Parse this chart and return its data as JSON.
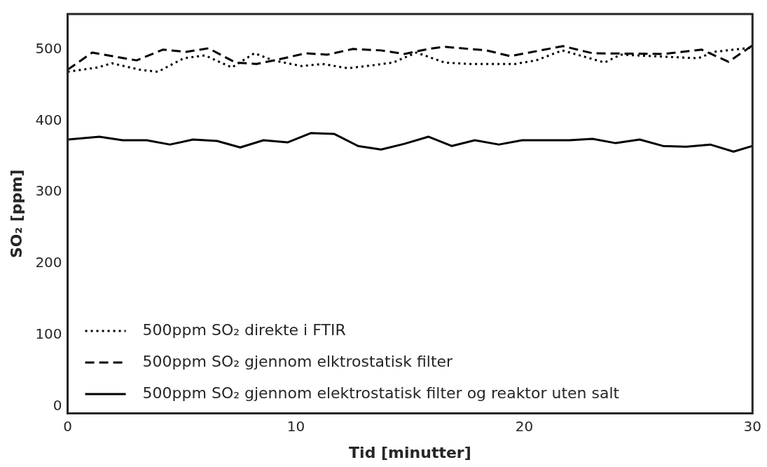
{
  "chart_data": {
    "type": "line",
    "xlabel": "Tid [minutter]",
    "ylabel": "SO₂ [ppm]",
    "xlim": [
      0,
      30
    ],
    "xticks": [
      0,
      10,
      20,
      30
    ],
    "ylim": [
      -10,
      550
    ],
    "yticks": [
      0,
      100,
      200,
      300,
      400,
      500
    ],
    "grid": false,
    "legend": "bottom left",
    "marker": "none",
    "series": [
      {
        "name": "500ppm SO₂ direkte i FTIR",
        "color": "#000000",
        "line_style": "dotted",
        "x": [
          0,
          1.3,
          1.94,
          3.15,
          3.95,
          5.09,
          6.02,
          7.19,
          8.18,
          9.01,
          10.25,
          11.17,
          12.28,
          13.33,
          14.26,
          15.28,
          16.51,
          17.53,
          19.6,
          20.52,
          21.67,
          23.52,
          24.23,
          27.62,
          28.33,
          30
        ],
        "values": [
          469,
          475,
          481,
          472,
          469,
          488,
          492,
          475,
          495,
          485,
          477,
          480,
          474,
          478,
          482,
          496,
          482,
          480,
          480,
          485,
          499,
          482,
          493,
          488,
          497,
          503
        ]
      },
      {
        "name": "500ppm SO₂ gjennom elktrostatisk filter",
        "color": "#000000",
        "line_style": "dashed",
        "x": [
          0,
          1.08,
          3.02,
          4.17,
          5.19,
          6.17,
          7.35,
          8.27,
          9.2,
          10.43,
          11.36,
          12.5,
          13.73,
          14.75,
          15.8,
          16.51,
          18.36,
          19.38,
          20.22,
          21.7,
          22.99,
          26.08,
          27.78,
          28.95,
          30
        ],
        "values": [
          472,
          496,
          485,
          500,
          497,
          502,
          482,
          480,
          486,
          495,
          493,
          501,
          499,
          494,
          501,
          504,
          499,
          491,
          496,
          505,
          495,
          494,
          500,
          483,
          506
        ]
      },
      {
        "name": "500ppm SO₂ gjennom elektrostatisk filter og reaktor uten salt",
        "color": "#000000",
        "line_style": "solid",
        "x": [
          0,
          1.39,
          2.41,
          3.46,
          4.48,
          5.49,
          6.54,
          7.56,
          8.58,
          9.63,
          10.65,
          11.67,
          12.72,
          13.73,
          14.75,
          15.8,
          16.82,
          17.84,
          18.89,
          19.91,
          20.93,
          21.98,
          22.99,
          24.01,
          25.06,
          26.08,
          27.1,
          28.15,
          29.17,
          30
        ],
        "values": [
          374,
          378,
          373,
          373,
          367,
          374,
          372,
          363,
          373,
          370,
          383,
          382,
          365,
          360,
          368,
          378,
          365,
          373,
          367,
          373,
          373,
          373,
          375,
          369,
          374,
          365,
          364,
          367,
          357,
          365
        ]
      }
    ]
  }
}
